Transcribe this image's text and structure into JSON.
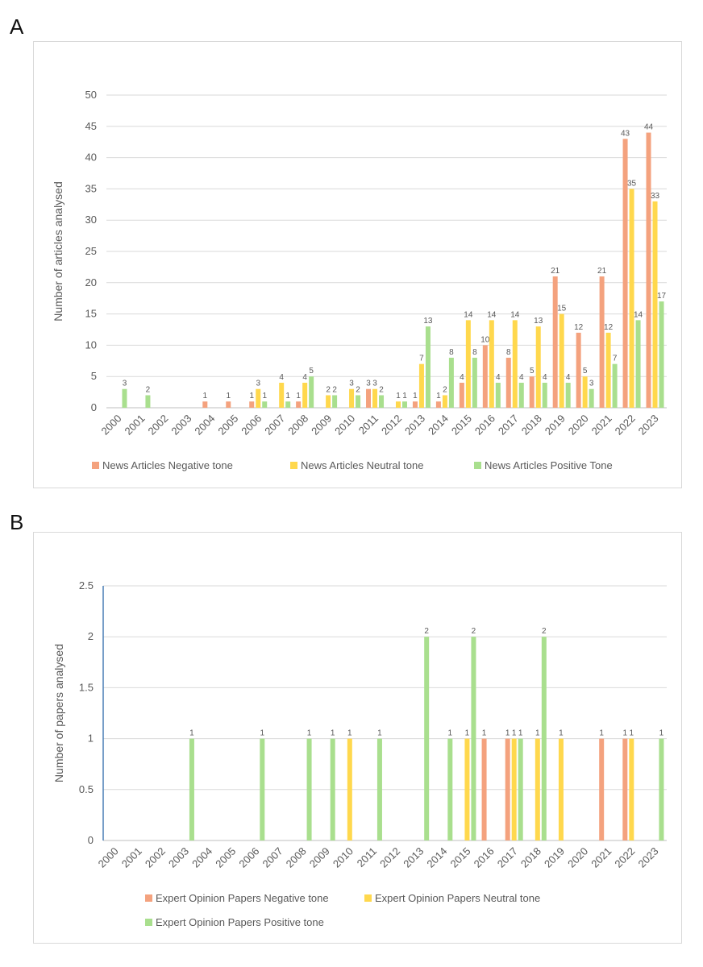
{
  "colors": {
    "negative": "#f4a27e",
    "neutral": "#ffd84d",
    "positive": "#a9df8e"
  },
  "chart_data": [
    {
      "panel": "A",
      "type": "bar",
      "title": "",
      "xlabel": "",
      "ylabel": "Number of articles analysed",
      "ylim": [
        0,
        50
      ],
      "yticks": [
        0,
        5,
        10,
        15,
        20,
        25,
        30,
        35,
        40,
        45,
        50
      ],
      "ytick_labels": [
        "0",
        "5",
        "10",
        "15",
        "20",
        "25",
        "30",
        "35",
        "40",
        "45",
        "50"
      ],
      "grid": true,
      "legend_position": "bottom",
      "categories": [
        "2000",
        "2001",
        "2002",
        "2003",
        "2004",
        "2005",
        "2006",
        "2007",
        "2008",
        "2009",
        "2010",
        "2011",
        "2012",
        "2013",
        "2014",
        "2015",
        "2016",
        "2017",
        "2018",
        "2019",
        "2020",
        "2021",
        "2022",
        "2023"
      ],
      "series": [
        {
          "name": "News Articles Negative tone",
          "color_key": "negative",
          "values": [
            0,
            0,
            0,
            0,
            1,
            1,
            1,
            0,
            1,
            0,
            0,
            3,
            0,
            1,
            1,
            4,
            10,
            8,
            5,
            21,
            12,
            21,
            43,
            44
          ]
        },
        {
          "name": "News Articles Neutral tone",
          "color_key": "neutral",
          "values": [
            0,
            0,
            0,
            0,
            0,
            0,
            3,
            4,
            4,
            2,
            3,
            3,
            1,
            7,
            2,
            14,
            14,
            14,
            13,
            15,
            5,
            12,
            35,
            33
          ]
        },
        {
          "name": "News Articles Positive Tone",
          "color_key": "positive",
          "values": [
            3,
            2,
            0,
            0,
            0,
            0,
            1,
            1,
            5,
            2,
            2,
            2,
            1,
            13,
            8,
            8,
            4,
            4,
            4,
            4,
            3,
            7,
            14,
            17
          ]
        }
      ]
    },
    {
      "panel": "B",
      "type": "bar",
      "title": "",
      "xlabel": "",
      "ylabel": "Number of papers analysed",
      "ylim": [
        0,
        2.5
      ],
      "yticks": [
        0,
        0.5,
        1,
        1.5,
        2,
        2.5
      ],
      "ytick_labels": [
        "0",
        "0.5",
        "1",
        "1.5",
        "2",
        "2.5"
      ],
      "grid": true,
      "legend_position": "bottom",
      "categories": [
        "2000",
        "2001",
        "2002",
        "2003",
        "2004",
        "2005",
        "2006",
        "2007",
        "2008",
        "2009",
        "2010",
        "2011",
        "2012",
        "2013",
        "2014",
        "2015",
        "2016",
        "2017",
        "2018",
        "2019",
        "2020",
        "2021",
        "2022",
        "2023"
      ],
      "series": [
        {
          "name": "Expert Opinion Papers Negative tone",
          "color_key": "negative",
          "values": [
            0,
            0,
            0,
            0,
            0,
            0,
            0,
            0,
            0,
            0,
            0,
            0,
            0,
            0,
            0,
            0,
            1,
            1,
            0,
            0,
            0,
            1,
            1,
            0
          ]
        },
        {
          "name": "Expert Opinion Papers Neutral tone",
          "color_key": "neutral",
          "values": [
            0,
            0,
            0,
            0,
            0,
            0,
            0,
            0,
            0,
            0,
            1,
            0,
            0,
            0,
            0,
            1,
            0,
            1,
            1,
            1,
            0,
            0,
            1,
            0
          ]
        },
        {
          "name": "Expert Opinion Papers Positive tone",
          "color_key": "positive",
          "values": [
            0,
            0,
            0,
            1,
            0,
            0,
            1,
            0,
            1,
            1,
            0,
            1,
            0,
            2,
            1,
            2,
            0,
            1,
            2,
            0,
            0,
            0,
            0,
            1
          ]
        }
      ]
    }
  ]
}
